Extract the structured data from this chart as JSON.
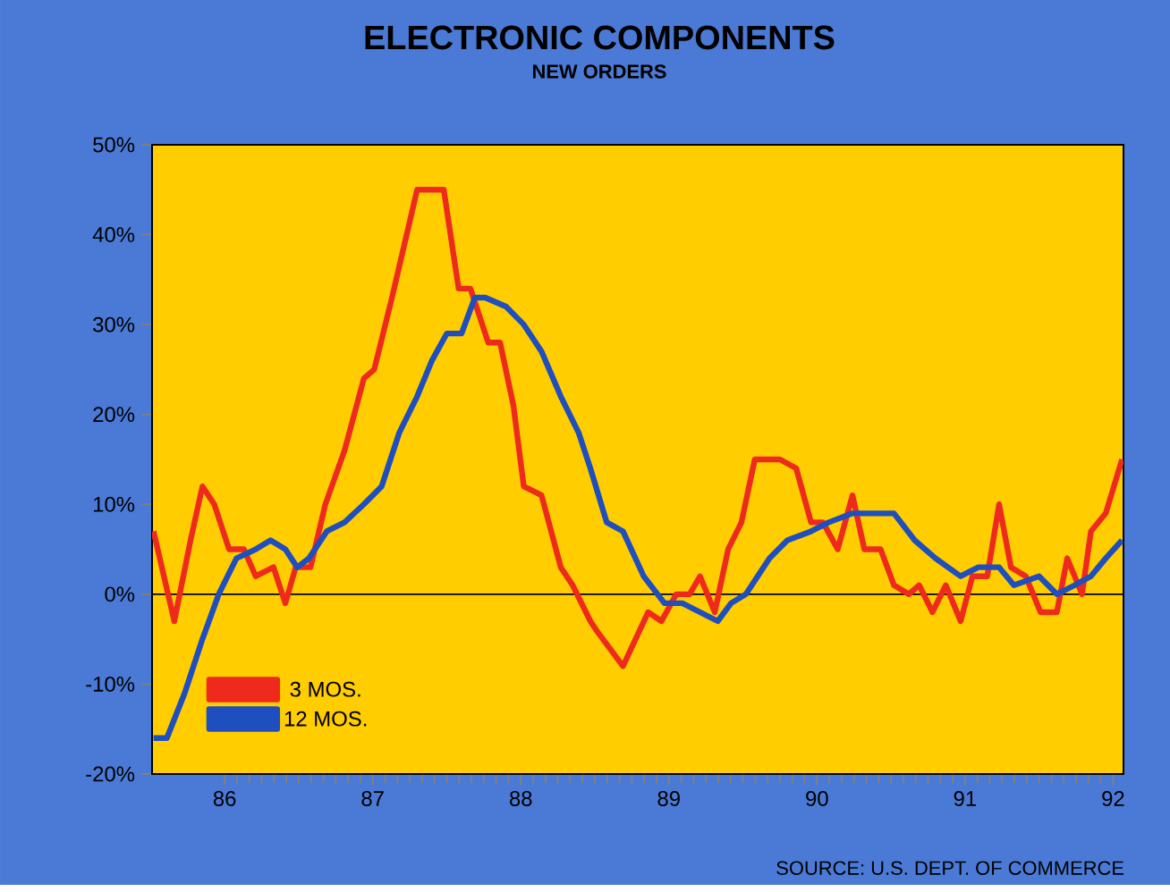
{
  "chart_data": {
    "type": "line",
    "title": "ELECTRONIC COMPONENTS",
    "subtitle": "NEW ORDERS",
    "annotations": [
      "SOURCE: U.S. DEPT. OF COMMERCE"
    ],
    "xlim": [
      85.51,
      92.07
    ],
    "xticks": [
      86,
      87,
      88,
      89,
      90,
      91,
      92
    ],
    "ylim": [
      -20,
      50
    ],
    "yticks": [
      {
        "value": -20,
        "label": "-20%"
      },
      {
        "value": -10,
        "label": "-10%"
      },
      {
        "value": 0,
        "label": "0%"
      },
      {
        "value": 10,
        "label": "10%"
      },
      {
        "value": 20,
        "label": "20%"
      },
      {
        "value": 30,
        "label": "30%"
      },
      {
        "value": 40,
        "label": "40%"
      },
      {
        "value": 50,
        "label": "50%"
      }
    ],
    "ref_lines": [
      {
        "axis": "y",
        "value": 0,
        "color": "#000000"
      }
    ],
    "legend": "bottom left",
    "grid": false,
    "marker": "none",
    "line_style": "solid",
    "series": [
      {
        "name": "3 MOS.",
        "color": "#ee2a1c",
        "x": [
          85.52,
          85.66,
          85.77,
          85.85,
          85.93,
          86.03,
          86.13,
          86.21,
          86.33,
          86.41,
          86.48,
          86.58,
          86.68,
          86.81,
          86.94,
          87.01,
          87.13,
          87.3,
          87.48,
          87.58,
          87.66,
          87.78,
          87.86,
          87.95,
          88.02,
          88.14,
          88.27,
          88.35,
          88.47,
          88.51,
          88.69,
          88.86,
          88.95,
          89.05,
          89.14,
          89.21,
          89.31,
          89.4,
          89.49,
          89.58,
          89.68,
          89.75,
          89.86,
          89.96,
          90.04,
          90.14,
          90.24,
          90.32,
          90.43,
          90.52,
          90.62,
          90.69,
          90.78,
          90.87,
          90.97,
          91.05,
          91.15,
          91.23,
          91.31,
          91.41,
          91.51,
          91.62,
          91.69,
          91.79,
          91.85,
          91.95,
          92.06
        ],
        "values": [
          7,
          -3,
          6,
          12,
          10,
          5,
          5,
          2,
          3,
          -1,
          3,
          3,
          10,
          16,
          24,
          25,
          33,
          45,
          45,
          34,
          34,
          28,
          28,
          21,
          12,
          11,
          3,
          1,
          -3,
          -4,
          -8,
          -2,
          -3,
          0,
          0,
          2,
          -2,
          5,
          8,
          15,
          15,
          15,
          14,
          8,
          8,
          5,
          11,
          5,
          5,
          1,
          0,
          1,
          -2,
          1,
          -3,
          2,
          2,
          10,
          3,
          2,
          -2,
          -2,
          4,
          0,
          7,
          9,
          15
        ]
      },
      {
        "name": "12 MOS.",
        "color": "#1f4fbf",
        "x": [
          85.52,
          85.61,
          85.73,
          85.85,
          85.96,
          86.08,
          86.21,
          86.31,
          86.41,
          86.49,
          86.57,
          86.69,
          86.81,
          86.94,
          87.06,
          87.18,
          87.3,
          87.4,
          87.5,
          87.6,
          87.69,
          87.76,
          87.9,
          88.02,
          88.14,
          88.27,
          88.39,
          88.47,
          88.58,
          88.69,
          88.83,
          88.97,
          89.09,
          89.21,
          89.33,
          89.42,
          89.52,
          89.68,
          89.8,
          89.96,
          90.08,
          90.24,
          90.4,
          90.52,
          90.66,
          90.8,
          90.97,
          91.09,
          91.23,
          91.33,
          91.5,
          91.62,
          91.74,
          91.85,
          91.95,
          92.06
        ],
        "values": [
          -16,
          -16,
          -11,
          -5,
          0,
          4,
          5,
          6,
          5,
          3,
          4,
          7,
          8,
          10,
          12,
          18,
          22,
          26,
          29,
          29,
          33,
          33,
          32,
          30,
          27,
          22,
          18,
          14,
          8,
          7,
          2,
          -1,
          -1,
          -2,
          -3,
          -1,
          0,
          4,
          6,
          7,
          8,
          9,
          9,
          9,
          6,
          4,
          2,
          3,
          3,
          1,
          2,
          0,
          1,
          2,
          4,
          6
        ]
      }
    ]
  }
}
